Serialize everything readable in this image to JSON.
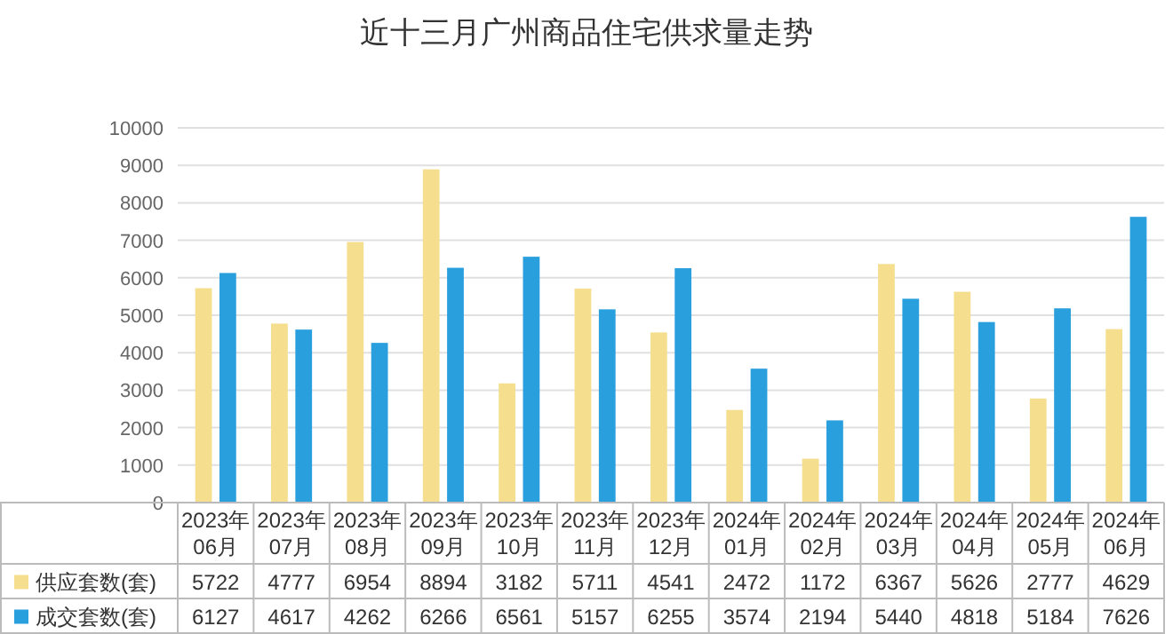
{
  "chart_data": {
    "type": "bar",
    "title": "近十三月广州商品住宅供求量走势",
    "categories": [
      "2023年06月",
      "2023年07月",
      "2023年08月",
      "2023年09月",
      "2023年10月",
      "2023年11月",
      "2023年12月",
      "2024年01月",
      "2024年02月",
      "2024年03月",
      "2024年04月",
      "2024年05月",
      "2024年06月"
    ],
    "series": [
      {
        "name": "供应套数(套)",
        "color": "#f5df8e",
        "values": [
          5722,
          4777,
          6954,
          8894,
          3182,
          5711,
          4541,
          2472,
          1172,
          6367,
          5626,
          2777,
          4629
        ]
      },
      {
        "name": "成交套数(套)",
        "color": "#2a9fdd",
        "values": [
          6127,
          4617,
          4262,
          6266,
          6561,
          5157,
          6255,
          3574,
          2194,
          5440,
          4818,
          5184,
          7626
        ]
      }
    ],
    "ylim": [
      0,
      10000
    ],
    "yticks": [
      0,
      1000,
      2000,
      3000,
      4000,
      5000,
      6000,
      7000,
      8000,
      9000,
      10000
    ],
    "grid": "y",
    "legend": "bottom",
    "data_labels": true
  }
}
